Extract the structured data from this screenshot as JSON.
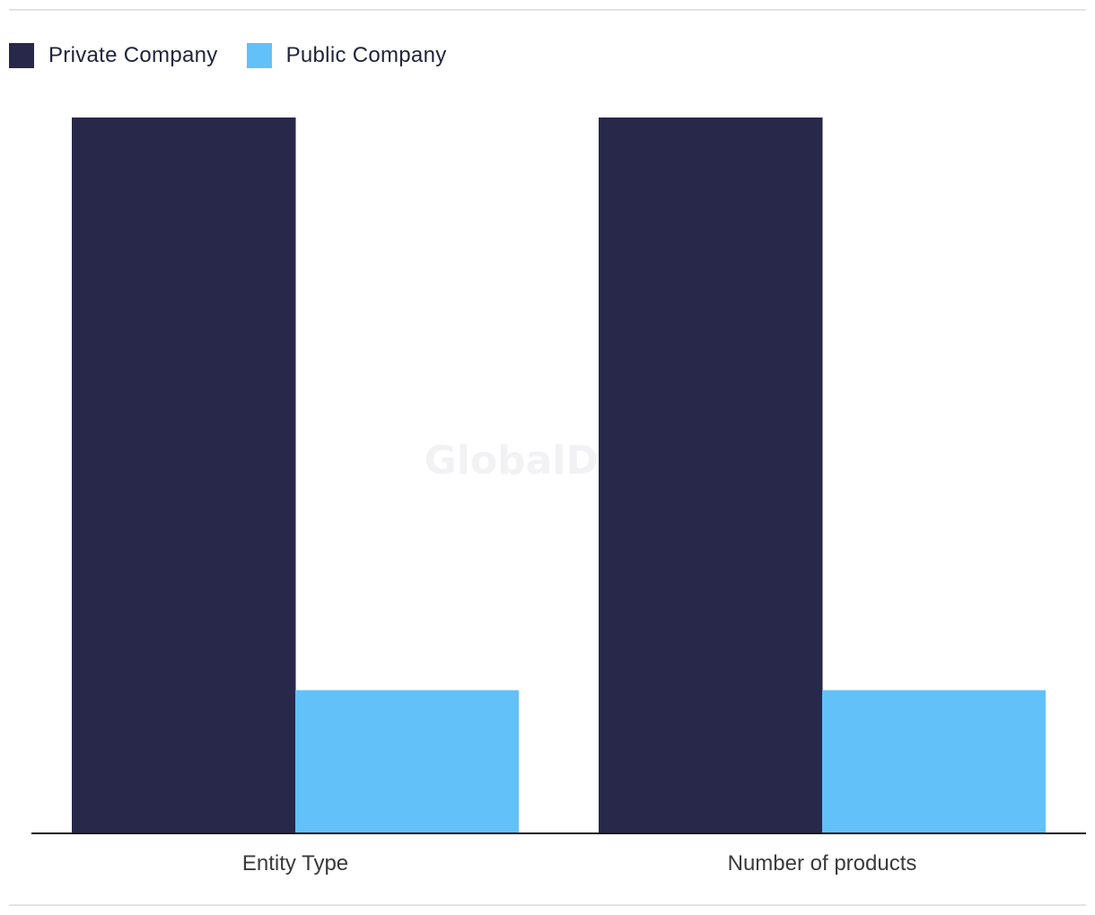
{
  "chart_data": {
    "type": "bar",
    "title": "",
    "xlabel": "",
    "ylabel": "",
    "categories": [
      "Entity Type",
      "Number of products"
    ],
    "series": [
      {
        "name": "Private Company",
        "values": [
          5,
          5
        ],
        "color": "#27284a"
      },
      {
        "name": "Public Company",
        "values": [
          1,
          1
        ],
        "color": "#62c1f8"
      }
    ],
    "ylim": [
      0,
      5
    ],
    "grid": false,
    "legend_position": "top-left"
  },
  "watermark": "GlobalData"
}
